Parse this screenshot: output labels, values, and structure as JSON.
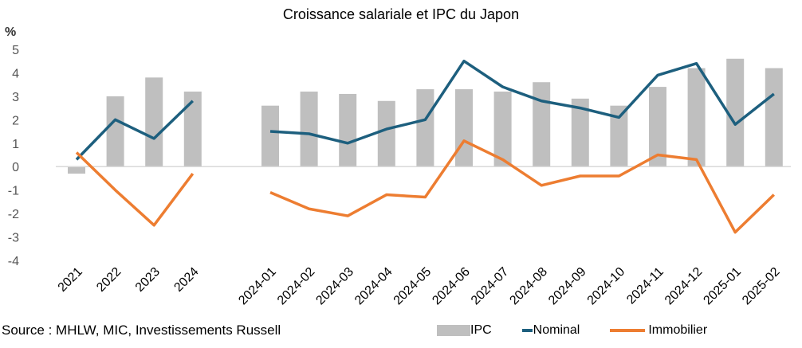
{
  "chart_data": {
    "type": "bar+line",
    "title": "Croissance salariale et IPC du Japon",
    "ylabel": "%",
    "ylim": [
      -4,
      5
    ],
    "yticks": [
      5,
      4,
      3,
      2,
      1,
      0,
      -1,
      -2,
      -3,
      -4
    ],
    "grid": false,
    "legend_position": "bottom",
    "categories": [
      "2021",
      "2022",
      "2023",
      "2024",
      "",
      "2024-01",
      "2024-02",
      "2024-03",
      "2024-04",
      "2024-05",
      "2024-06",
      "2024-07",
      "2024-08",
      "2024-09",
      "2024-10",
      "2024-11",
      "2024-12",
      "2025-01",
      "2025-02"
    ],
    "series": [
      {
        "name": "IPC",
        "type": "bar",
        "color": "#bfbfbf",
        "values": [
          -0.3,
          3.0,
          3.8,
          3.2,
          null,
          2.6,
          3.2,
          3.1,
          2.8,
          3.3,
          3.3,
          3.2,
          3.6,
          2.9,
          2.6,
          3.4,
          4.2,
          4.6,
          4.2
        ]
      },
      {
        "name": "Nominal",
        "type": "line",
        "color": "#1d5f7e",
        "values": [
          0.3,
          2.0,
          1.2,
          2.8,
          null,
          1.5,
          1.4,
          1.0,
          1.6,
          2.0,
          4.5,
          3.4,
          2.8,
          2.5,
          2.1,
          3.9,
          4.4,
          1.8,
          3.1
        ]
      },
      {
        "name": "Immobilier",
        "type": "line",
        "color": "#ed7d31",
        "values": [
          0.6,
          -1.0,
          -2.5,
          -0.3,
          null,
          -1.1,
          -1.8,
          -2.1,
          -1.2,
          -1.3,
          1.1,
          0.3,
          -0.8,
          -0.4,
          -0.4,
          0.5,
          0.3,
          -2.8,
          -1.2
        ]
      }
    ],
    "source": "Source : MHLW, MIC, Investissements Russell"
  }
}
